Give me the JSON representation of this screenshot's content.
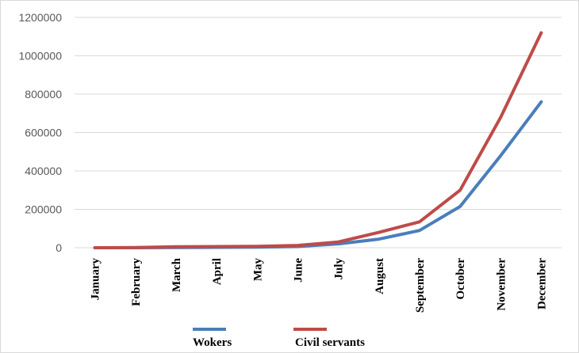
{
  "chart_data": {
    "type": "line",
    "title": "",
    "xlabel": "",
    "ylabel": "",
    "categories": [
      "January",
      "February",
      "March",
      "April",
      "May",
      "June",
      "July",
      "August",
      "September",
      "October",
      "November",
      "December"
    ],
    "ylim": [
      0,
      1200000
    ],
    "yticks": [
      "0",
      "200000",
      "400000",
      "600000",
      "800000",
      "1000000",
      "1200000"
    ],
    "grid": true,
    "legend_position": "bottom",
    "series": [
      {
        "name": "Wokers",
        "color": "#4a7ebb",
        "values": [
          0,
          0,
          1000,
          2000,
          3000,
          6000,
          20000,
          45000,
          90000,
          215000,
          480000,
          760000
        ]
      },
      {
        "name": "Civil servants",
        "color": "#be4b48",
        "values": [
          0,
          1000,
          5000,
          6000,
          7000,
          12000,
          30000,
          80000,
          135000,
          300000,
          680000,
          1120000
        ]
      }
    ]
  }
}
